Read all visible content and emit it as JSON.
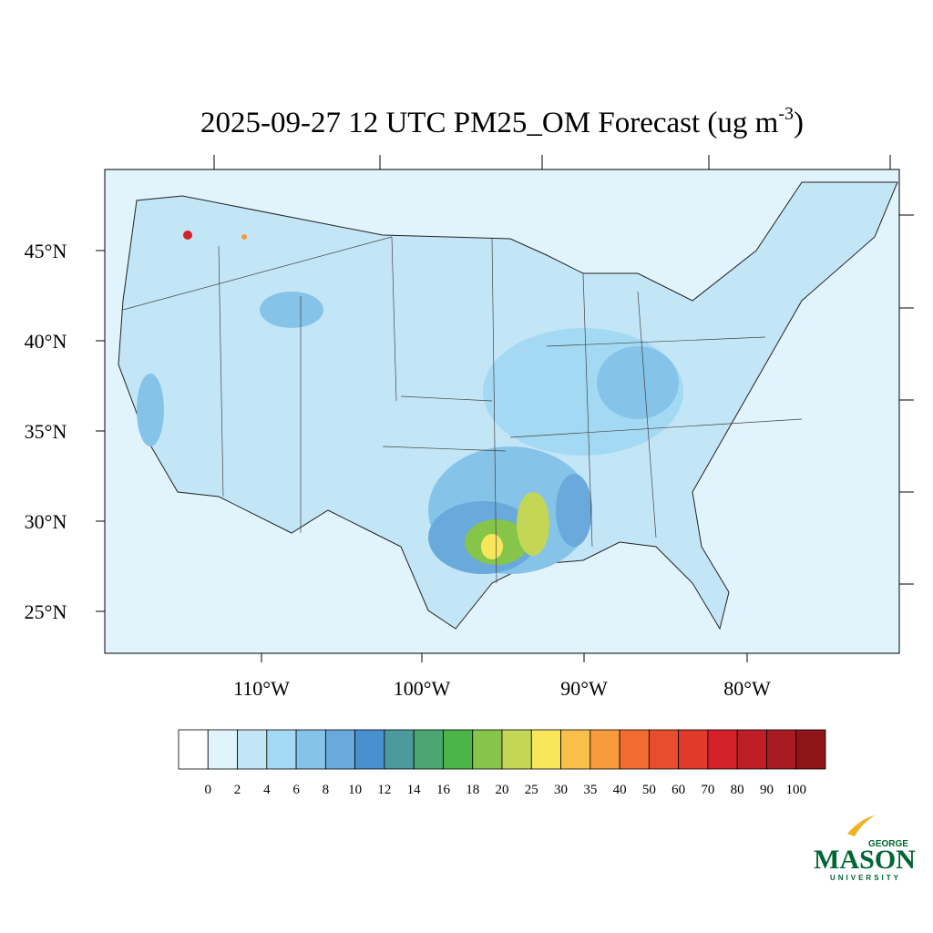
{
  "map": {
    "title": {
      "main": "2025-09-27 12 UTC PM25_OM Forecast (ug m",
      "sup": "-3",
      "end": ")"
    },
    "lat_labels": [
      "45°N",
      "40°N",
      "35°N",
      "30°N",
      "25°N"
    ],
    "lon_labels": [
      "110°W",
      "100°W",
      "90°W",
      "80°W"
    ],
    "colorbar": {
      "levels": [
        0,
        2,
        4,
        6,
        8,
        10,
        12,
        14,
        16,
        18,
        20,
        25,
        30,
        35,
        40,
        50,
        60,
        70,
        80,
        90,
        100
      ],
      "colors": [
        "#ffffff",
        "#e1f3fb",
        "#c3e6f7",
        "#a4d9f3",
        "#86c3e8",
        "#69a9db",
        "#4a8fcf",
        "#4a9a9e",
        "#4aa570",
        "#4bb54a",
        "#86c54a",
        "#c4d655",
        "#f8e75a",
        "#f8c04a",
        "#f79a3c",
        "#f26b30",
        "#e84d2d",
        "#df3a2a",
        "#d32029",
        "#be1e25",
        "#a81b22",
        "#8e1518"
      ]
    },
    "logo": {
      "top": "GEORGE",
      "main": "MASON",
      "bottom": "UNIVERSITY"
    }
  }
}
